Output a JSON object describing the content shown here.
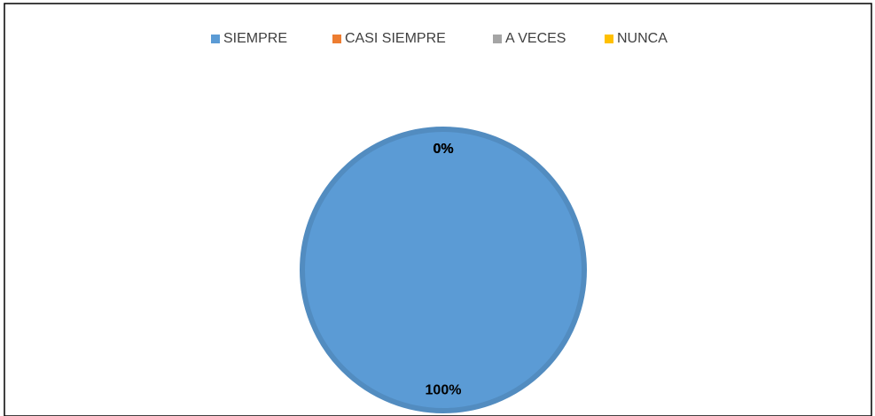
{
  "chart_data": {
    "type": "pie",
    "categories": [
      "SIEMPRE",
      "CASI SIEMPRE",
      "A VECES",
      "NUNCA"
    ],
    "values": [
      100,
      0,
      0,
      0
    ],
    "value_labels": [
      "100%",
      "0%",
      "0%",
      "0%"
    ],
    "colors": [
      "#5b9bd5",
      "#ed7d31",
      "#a5a5a5",
      "#ffc000"
    ],
    "legend": "top"
  }
}
